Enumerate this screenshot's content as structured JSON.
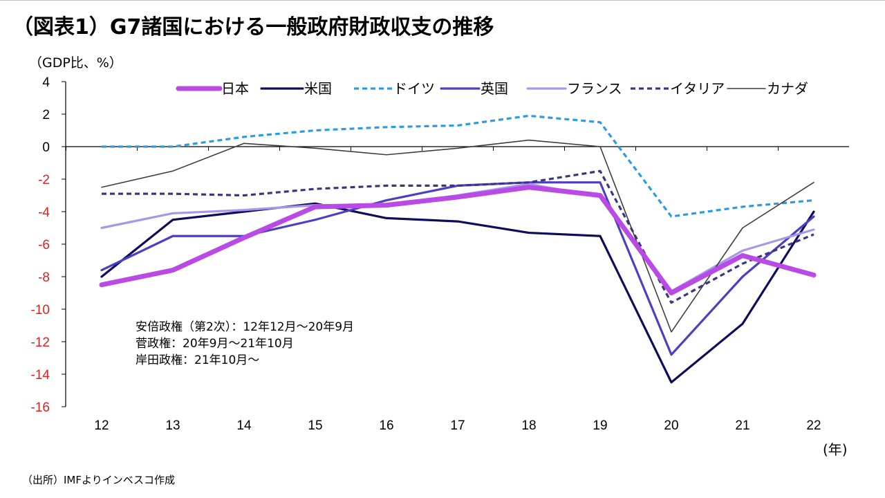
{
  "title": "（図表1）G7諸国における一般政府財政収支の推移",
  "unit_label": "（GDP比、%）",
  "x_unit_label": "(年)",
  "source": "（出所）IMFよりインベスコ作成",
  "notes": [
    "安倍政権（第2次）：12年12月～20年9月",
    "菅政権：20年9月～21年10月",
    "岸田政権：21年10月～"
  ],
  "chart_data": {
    "type": "line",
    "title": "（図表1）G7諸国における一般政府財政収支の推移",
    "xlabel": "(年)",
    "ylabel": "（GDP比、%）",
    "categories": [
      "12",
      "13",
      "14",
      "15",
      "16",
      "17",
      "18",
      "19",
      "20",
      "21",
      "22"
    ],
    "ylim": [
      -16,
      4
    ],
    "yticks": [
      4,
      2,
      0,
      -2,
      -4,
      -6,
      -8,
      -10,
      -12,
      -14,
      -16
    ],
    "negative_tick_color": "#e02020",
    "series": [
      {
        "name": "日本",
        "color": "#b94ae6",
        "style": "solid",
        "weight": "thick",
        "values": [
          -8.5,
          -7.6,
          -5.6,
          -3.7,
          -3.6,
          -3.1,
          -2.5,
          -3.0,
          -9.0,
          -6.7,
          -7.9
        ]
      },
      {
        "name": "米国",
        "color": "#0d0d5c",
        "style": "solid",
        "weight": "medium",
        "values": [
          -8.0,
          -4.5,
          -4.0,
          -3.5,
          -4.4,
          -4.6,
          -5.3,
          -5.5,
          -14.5,
          -10.9,
          -4.0
        ]
      },
      {
        "name": "ドイツ",
        "color": "#2e9be0",
        "style": "dashed",
        "weight": "medium",
        "values": [
          0.0,
          0.0,
          0.6,
          1.0,
          1.2,
          1.3,
          1.9,
          1.5,
          -4.3,
          -3.7,
          -3.3
        ]
      },
      {
        "name": "英国",
        "color": "#4b3fc4",
        "style": "solid",
        "weight": "medium",
        "values": [
          -7.6,
          -5.5,
          -5.5,
          -4.5,
          -3.3,
          -2.4,
          -2.2,
          -2.2,
          -12.8,
          -8.0,
          -4.3
        ]
      },
      {
        "name": "フランス",
        "color": "#a996ec",
        "style": "solid",
        "weight": "medium",
        "values": [
          -5.0,
          -4.1,
          -3.9,
          -3.6,
          -3.6,
          -3.0,
          -2.3,
          -3.1,
          -8.9,
          -6.4,
          -5.1
        ]
      },
      {
        "name": "イタリア",
        "color": "#3b3480",
        "style": "dashed",
        "weight": "medium",
        "values": [
          -2.9,
          -2.9,
          -3.0,
          -2.6,
          -2.4,
          -2.4,
          -2.2,
          -1.5,
          -9.6,
          -7.2,
          -5.4
        ]
      },
      {
        "name": "カナダ",
        "color": "#3c3c3c",
        "style": "solid",
        "weight": "thin",
        "values": [
          -2.5,
          -1.5,
          0.2,
          -0.1,
          -0.5,
          -0.1,
          0.4,
          0.0,
          -11.4,
          -5.0,
          -2.2
        ]
      }
    ]
  }
}
